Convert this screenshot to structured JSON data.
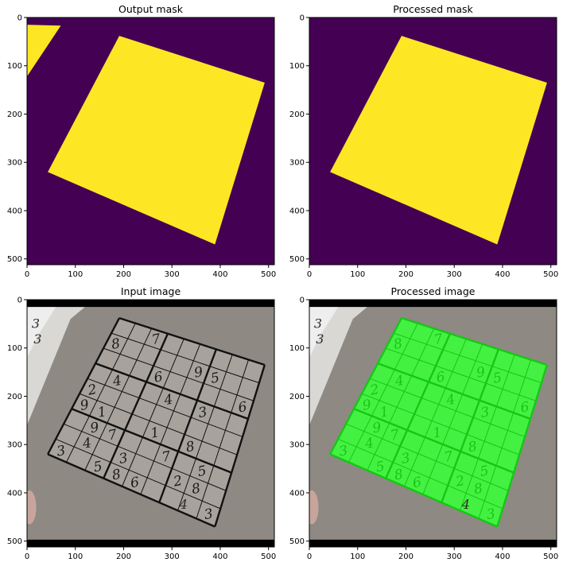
{
  "panels": [
    {
      "id": "output-mask",
      "title": "Output mask",
      "content": "mask",
      "show_corner_artifact": true,
      "xticks": [
        "0",
        "100",
        "200",
        "300",
        "400",
        "500"
      ],
      "yticks": [
        "0",
        "100",
        "200",
        "300",
        "400",
        "500"
      ]
    },
    {
      "id": "processed-mask",
      "title": "Processed mask",
      "content": "mask",
      "show_corner_artifact": false,
      "xticks": [
        "0",
        "100",
        "200",
        "300",
        "400",
        "500"
      ],
      "yticks": [
        "0",
        "100",
        "200",
        "300",
        "400",
        "500"
      ]
    },
    {
      "id": "input-image",
      "title": "Input image",
      "content": "photo",
      "green_overlay": false,
      "xticks": [
        "0",
        "100",
        "200",
        "300",
        "400",
        "500"
      ],
      "yticks": [
        "0",
        "100",
        "200",
        "300",
        "400",
        "500"
      ]
    },
    {
      "id": "processed-image",
      "title": "Processed image",
      "content": "photo",
      "green_overlay": true,
      "xticks": [
        "0",
        "100",
        "200",
        "300",
        "400",
        "500"
      ],
      "yticks": [
        "0",
        "100",
        "200",
        "300",
        "400",
        "500"
      ]
    }
  ],
  "image_extent": [
    0,
    512
  ],
  "mask_colors": {
    "background": "#440154",
    "foreground": "#fde725"
  },
  "overlay_color": "#33ff33",
  "sudoku_quad": [
    [
      191,
      38
    ],
    [
      492,
      135
    ],
    [
      389,
      470
    ],
    [
      43,
      320
    ]
  ],
  "sudoku_digits": [
    [
      "",
      "",
      "7",
      "",
      "",
      "",
      "",
      "",
      ""
    ],
    [
      "8",
      "",
      "",
      "",
      "",
      "9",
      "5",
      "",
      ""
    ],
    [
      "",
      "",
      "",
      "6",
      "",
      "",
      "",
      "",
      "6"
    ],
    [
      "",
      "4",
      "",
      "",
      "4",
      "",
      "3",
      "",
      ""
    ],
    [
      "2",
      "",
      "",
      "",
      "",
      "",
      "",
      "",
      ""
    ],
    [
      "9",
      "1",
      "",
      "",
      "1",
      "",
      "8",
      "",
      ""
    ],
    [
      "",
      "9",
      "7",
      "",
      "",
      "7",
      "",
      "5",
      ""
    ],
    [
      "",
      "4",
      "",
      "3",
      "",
      "",
      "2",
      "8",
      ""
    ],
    [
      "3",
      "",
      "5",
      "8",
      "6",
      "",
      "",
      "",
      "3"
    ]
  ],
  "sudoku_extra_digits": [
    {
      "text": "3",
      "x": 18,
      "y": 50
    },
    {
      "text": "3",
      "x": 22,
      "y": 82
    },
    {
      "text": "4",
      "x": 324,
      "y": 425
    }
  ]
}
